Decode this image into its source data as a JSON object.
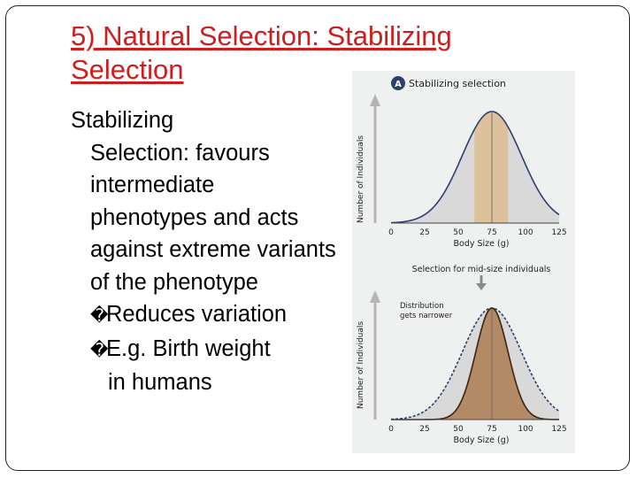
{
  "slide": {
    "title_line1": "5) Natural Selection: Stabilizing",
    "title_line2": "Selection",
    "term": "Stabilizing",
    "term_cont": "Selection",
    "definition": ": favours intermediate phenotypes and acts against extreme variants of the phenotype",
    "bullets": [
      {
        "text": "Reduces variation"
      },
      {
        "text": "E.g. Birth weight",
        "cont": "in humans"
      }
    ],
    "bullet_mark": "�"
  },
  "figure": {
    "panel_badge": "A",
    "panel_title": "Stabilizing selection",
    "ylabel": "Number of Individuals",
    "xlabel": "Body Size (g)",
    "x_ticks": [
      "0",
      "25",
      "50",
      "75",
      "100",
      "125"
    ],
    "middle_caption": "Selection for mid-size individuals",
    "annotation_line1": "Distribution",
    "annotation_line2": "gets narrower",
    "colors": {
      "accent": "#d01c1c",
      "selected_band": "#dcc19a",
      "curve_fill": "#d9d9d9",
      "narrow_fill": "#b38a66",
      "curve_stroke": "#2c3f6d",
      "narrow_stroke": "#3b2410",
      "arrow": "#8a8a8a"
    }
  },
  "chart_data": [
    {
      "type": "area",
      "title": "Stabilizing selection",
      "xlabel": "Body Size (g)",
      "ylabel": "Number of Individuals",
      "xlim": [
        0,
        125
      ],
      "x_ticks": [
        0,
        25,
        50,
        75,
        100,
        125
      ],
      "series": [
        {
          "mean": 75,
          "sd": 22
        }
      ],
      "highlight_range": [
        62,
        87
      ]
    },
    {
      "type": "area",
      "title": "",
      "xlabel": "Body Size (g)",
      "ylabel": "Number of Individuals",
      "xlim": [
        0,
        125
      ],
      "x_ticks": [
        0,
        25,
        50,
        75,
        100,
        125
      ],
      "series": [
        {
          "mean": 75,
          "sd": 22
        },
        {
          "mean": 75,
          "sd": 12
        }
      ]
    }
  ]
}
